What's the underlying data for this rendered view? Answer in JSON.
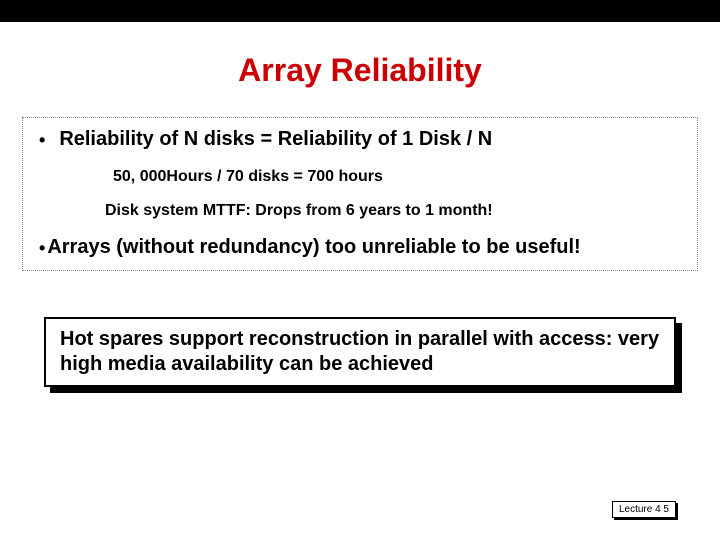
{
  "title": "Array Reliability",
  "title_color": "#cc0000",
  "bullets": {
    "main1": "Reliability of N disks = Reliability of 1 Disk / N",
    "sub1": "50, 000Hours / 70 disks = 700 hours",
    "sub2": "Disk system MTTF: Drops from 6 years  to 1 month!",
    "main2": "Arrays (without redundancy) too unreliable to be useful!"
  },
  "callout": "Hot spares support reconstruction in parallel with access: very high media availability can be achieved",
  "footer": "Lecture 4 5",
  "colors": {
    "background": "#ffffff",
    "topbar": "#000000",
    "text": "#000000",
    "border_dotted": "#888888"
  },
  "fonts": {
    "title_size": 32,
    "body_size": 20,
    "sub_size": 16,
    "footer_size": 10
  }
}
